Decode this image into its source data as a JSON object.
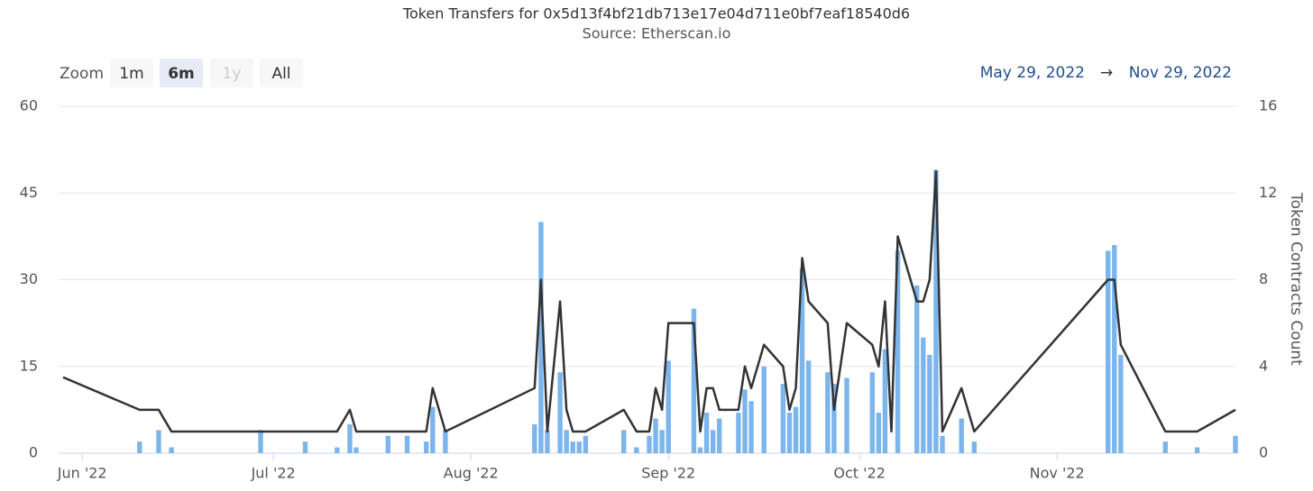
{
  "chart_data": {
    "type": "bar-line",
    "title": "Token Transfers for 0x5d13f4bf21db713e17e04d711e0bf7eaf18540d6",
    "subtitle": "Source: Etherscan.io",
    "zoom_label": "Zoom",
    "zoom_buttons": [
      "1m",
      "6m",
      "1y",
      "All"
    ],
    "zoom_selected": "6m",
    "zoom_disabled": [
      "1y"
    ],
    "range_from": "May 29, 2022",
    "range_arrow": "→",
    "range_to": "Nov 29, 2022",
    "y2_label": "Token Contracts Count",
    "xlim": [
      0,
      184
    ],
    "xticks": [
      {
        "value": 3,
        "label": "Jun '22"
      },
      {
        "value": 33,
        "label": "Jul '22"
      },
      {
        "value": 64,
        "label": "Aug '22"
      },
      {
        "value": 95,
        "label": "Sep '22"
      },
      {
        "value": 125,
        "label": "Oct '22"
      },
      {
        "value": 156,
        "label": "Nov '22"
      }
    ],
    "ylim": [
      0,
      60
    ],
    "yticks": [
      0,
      15,
      30,
      45,
      60
    ],
    "y2lim": [
      0,
      16
    ],
    "y2ticks": [
      0,
      4,
      8,
      12,
      16
    ],
    "grid": true,
    "series": [
      {
        "kind": "bar",
        "color": "#7cb5ec",
        "x": [
          12,
          15,
          17,
          31,
          38,
          43,
          45,
          46,
          51,
          54,
          57,
          58,
          60,
          74,
          75,
          76,
          78,
          79,
          80,
          81,
          82,
          88,
          90,
          92,
          93,
          94,
          95,
          99,
          100,
          101,
          102,
          103,
          106,
          107,
          108,
          110,
          113,
          114,
          115,
          116,
          117,
          120,
          121,
          123,
          127,
          128,
          129,
          131,
          134,
          135,
          136,
          137,
          138,
          141,
          143,
          164,
          165,
          166,
          173,
          178,
          184
        ],
        "values": [
          2,
          4,
          1,
          4,
          2,
          1,
          5,
          1,
          3,
          3,
          2,
          8,
          4,
          5,
          40,
          4,
          14,
          4,
          2,
          2,
          3,
          4,
          1,
          3,
          6,
          4,
          16,
          25,
          1,
          7,
          4,
          6,
          7,
          11,
          9,
          15,
          12,
          7,
          8,
          32,
          16,
          14,
          12,
          13,
          14,
          7,
          18,
          35,
          29,
          20,
          17,
          49,
          3,
          6,
          2,
          35,
          36,
          17,
          2,
          1,
          3
        ]
      },
      {
        "kind": "line",
        "color": "#333333",
        "axis": "y2",
        "x": [
          0,
          12,
          15,
          17,
          43,
          45,
          46,
          57,
          58,
          60,
          74,
          75,
          76,
          78,
          79,
          80,
          82,
          88,
          90,
          92,
          93,
          94,
          95,
          99,
          100,
          101,
          102,
          103,
          106,
          107,
          108,
          110,
          113,
          114,
          115,
          116,
          117,
          120,
          121,
          123,
          127,
          128,
          129,
          130,
          131,
          134,
          135,
          136,
          137,
          138,
          141,
          143,
          164,
          165,
          166,
          173,
          178,
          184
        ],
        "values": [
          3.5,
          2,
          2,
          1,
          1,
          2,
          1,
          1,
          3,
          1,
          3,
          8,
          1,
          7,
          2,
          1,
          1,
          2,
          1,
          1,
          3,
          2,
          6,
          6,
          1,
          3,
          3,
          2,
          2,
          4,
          3,
          5,
          4,
          2,
          3,
          9,
          7,
          6,
          2,
          6,
          5,
          4,
          7,
          1,
          10,
          7,
          7,
          8,
          13,
          1,
          3,
          1,
          8,
          8,
          5,
          1,
          1,
          2
        ]
      }
    ]
  }
}
